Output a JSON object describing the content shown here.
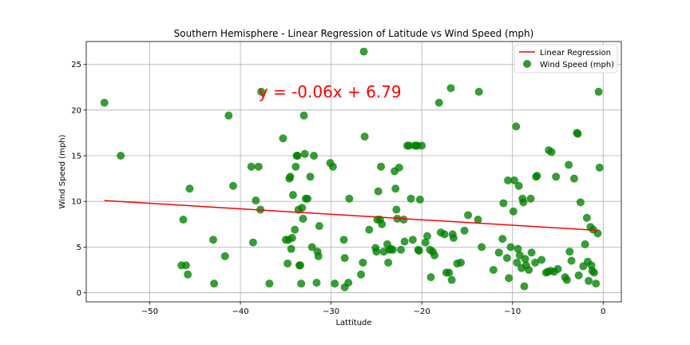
{
  "chart_data": {
    "type": "scatter",
    "title": "Southern Hemisphere - Linear Regression of Latitude vs Wind Speed (mph)",
    "xlabel": "Lattitude",
    "ylabel": "Wind Speed (mph)",
    "xlim": [
      -57,
      2
    ],
    "ylim": [
      -1,
      27.5
    ],
    "xticks": [
      -50,
      -40,
      -30,
      -20,
      -10,
      0
    ],
    "yticks": [
      0,
      5,
      10,
      15,
      20,
      25
    ],
    "grid": true,
    "legend_position": "top-right",
    "annotation": {
      "text": "y = -0.06x + 6.79",
      "x": -38,
      "y": 22,
      "color": "#ff0000"
    },
    "regression": {
      "name": "Linear Regression",
      "slope": -0.06,
      "intercept": 6.79,
      "x_range": [
        -55,
        -0.5
      ],
      "color": "#ff0000"
    },
    "series": [
      {
        "name": "Wind Speed (mph)",
        "color": "#008000",
        "points": [
          [
            -55,
            20.8
          ],
          [
            -53.2,
            15
          ],
          [
            -46.5,
            3
          ],
          [
            -46.3,
            8
          ],
          [
            -46,
            3
          ],
          [
            -45.8,
            2
          ],
          [
            -45.6,
            11.4
          ],
          [
            -43,
            5.8
          ],
          [
            -42.9,
            1
          ],
          [
            -41.7,
            4
          ],
          [
            -41.3,
            19.4
          ],
          [
            -40.8,
            11.7
          ],
          [
            -38.8,
            13.8
          ],
          [
            -38.6,
            5.5
          ],
          [
            -38.3,
            10.1
          ],
          [
            -38,
            13.8
          ],
          [
            -37.8,
            9.1
          ],
          [
            -37.7,
            22
          ],
          [
            -36.8,
            1
          ],
          [
            -35.3,
            16.9
          ],
          [
            -35,
            5.8
          ],
          [
            -34.8,
            3.2
          ],
          [
            -34.7,
            5.8
          ],
          [
            -34.6,
            12.5
          ],
          [
            -34.5,
            12.7
          ],
          [
            -34.4,
            4.8
          ],
          [
            -34.3,
            6
          ],
          [
            -34.2,
            10.7
          ],
          [
            -34,
            6.9
          ],
          [
            -33.9,
            13.8
          ],
          [
            -33.8,
            15
          ],
          [
            -33.7,
            15
          ],
          [
            -33.6,
            9.1
          ],
          [
            -33.5,
            3
          ],
          [
            -33.4,
            3
          ],
          [
            -33.3,
            1
          ],
          [
            -33.2,
            9.3
          ],
          [
            -33.1,
            8.1
          ],
          [
            -33,
            19.4
          ],
          [
            -32.9,
            15.2
          ],
          [
            -32.8,
            10.3
          ],
          [
            -32.6,
            10.3
          ],
          [
            -32.3,
            12.7
          ],
          [
            -32.1,
            5
          ],
          [
            -31.9,
            15
          ],
          [
            -31.6,
            1.1
          ],
          [
            -31.5,
            4.5
          ],
          [
            -31.4,
            4
          ],
          [
            -31.3,
            7.3
          ],
          [
            -30.1,
            14.2
          ],
          [
            -29.8,
            13.8
          ],
          [
            -29.6,
            1
          ],
          [
            -28.6,
            5.8
          ],
          [
            -28.5,
            0.6
          ],
          [
            -28.5,
            3.8
          ],
          [
            -28.1,
            1.1
          ],
          [
            -28,
            10.3
          ],
          [
            -26.7,
            2
          ],
          [
            -26.5,
            3.3
          ],
          [
            -26.4,
            26.4
          ],
          [
            -26.3,
            17.1
          ],
          [
            -25.8,
            6.9
          ],
          [
            -25.1,
            4.9
          ],
          [
            -25,
            4.5
          ],
          [
            -24.9,
            8
          ],
          [
            -24.8,
            11.1
          ],
          [
            -24.6,
            8
          ],
          [
            -24.5,
            13.8
          ],
          [
            -24.4,
            7.5
          ],
          [
            -24.2,
            4.5
          ],
          [
            -23.8,
            5.3
          ],
          [
            -23.7,
            3.3
          ],
          [
            -23.6,
            4.7
          ],
          [
            -23.4,
            4.8
          ],
          [
            -23.2,
            4.7
          ],
          [
            -23,
            13.3
          ],
          [
            -22.9,
            11.4
          ],
          [
            -22.8,
            9.1
          ],
          [
            -22.7,
            8.1
          ],
          [
            -22.5,
            13.7
          ],
          [
            -22.3,
            4.7
          ],
          [
            -22,
            8
          ],
          [
            -21.9,
            5.6
          ],
          [
            -21.6,
            16.1
          ],
          [
            -21.4,
            16.1
          ],
          [
            -21.2,
            10.3
          ],
          [
            -21,
            5.8
          ],
          [
            -20.8,
            16.1
          ],
          [
            -20.6,
            16.1
          ],
          [
            -20.5,
            16.1
          ],
          [
            -20.4,
            4.7
          ],
          [
            -20.3,
            4.6
          ],
          [
            -20.2,
            10.2
          ],
          [
            -20,
            16.1
          ],
          [
            -19.6,
            5.5
          ],
          [
            -19.4,
            6.2
          ],
          [
            -19.1,
            4.7
          ],
          [
            -19,
            1.7
          ],
          [
            -18.8,
            4.5
          ],
          [
            -18.6,
            4.1
          ],
          [
            -18.1,
            20.8
          ],
          [
            -17.9,
            6.6
          ],
          [
            -17.5,
            6.4
          ],
          [
            -17.3,
            2.2
          ],
          [
            -17,
            2.2
          ],
          [
            -16.8,
            22.4
          ],
          [
            -16.7,
            1.4
          ],
          [
            -16.6,
            6.4
          ],
          [
            -16.5,
            6
          ],
          [
            -16.1,
            3.2
          ],
          [
            -15.7,
            3.3
          ],
          [
            -15.3,
            6.8
          ],
          [
            -14.9,
            8.5
          ],
          [
            -13.8,
            8
          ],
          [
            -13.7,
            22
          ],
          [
            -13.4,
            5
          ],
          [
            -12.1,
            2.5
          ],
          [
            -11.5,
            4.4
          ],
          [
            -11.1,
            5.9
          ],
          [
            -11,
            9.8
          ],
          [
            -10.6,
            3.8
          ],
          [
            -10.5,
            12.3
          ],
          [
            -10.4,
            1.6
          ],
          [
            -10.2,
            5
          ],
          [
            -9.9,
            8.9
          ],
          [
            -9.8,
            12.3
          ],
          [
            -9.6,
            18.2
          ],
          [
            -9.5,
            3.3
          ],
          [
            -9.4,
            4.8
          ],
          [
            -9.3,
            11.7
          ],
          [
            -9.2,
            4.1
          ],
          [
            -9,
            2.7
          ],
          [
            -8.9,
            10.3
          ],
          [
            -8.8,
            9.9
          ],
          [
            -8.7,
            0.7
          ],
          [
            -8.6,
            3.7
          ],
          [
            -8.5,
            3
          ],
          [
            -8.2,
            2.5
          ],
          [
            -8,
            10.3
          ],
          [
            -7.9,
            4.4
          ],
          [
            -7.5,
            3.3
          ],
          [
            -7.4,
            12.7
          ],
          [
            -7.3,
            12.8
          ],
          [
            -6.8,
            3.6
          ],
          [
            -6.3,
            2.2
          ],
          [
            -6.1,
            2.3
          ],
          [
            -6,
            15.6
          ],
          [
            -5.8,
            2.4
          ],
          [
            -5.7,
            15.4
          ],
          [
            -5.4,
            2.3
          ],
          [
            -5.2,
            12.7
          ],
          [
            -5,
            2.6
          ],
          [
            -4.2,
            1.7
          ],
          [
            -4,
            1.4
          ],
          [
            -3.8,
            14
          ],
          [
            -3.7,
            4.5
          ],
          [
            -3.5,
            3.5
          ],
          [
            -3.2,
            12.5
          ],
          [
            -2.9,
            17.5
          ],
          [
            -2.8,
            17.4
          ],
          [
            -2.7,
            1.9
          ],
          [
            -2.5,
            9.9
          ],
          [
            -2.2,
            2.9
          ],
          [
            -2,
            5.3
          ],
          [
            -1.8,
            8.2
          ],
          [
            -1.7,
            3.4
          ],
          [
            -1.6,
            1.3
          ],
          [
            -1.4,
            7.2
          ],
          [
            -1.3,
            3
          ],
          [
            -1.2,
            2.4
          ],
          [
            -1.1,
            6.9
          ],
          [
            -1,
            2.2
          ],
          [
            -0.8,
            1
          ],
          [
            -0.6,
            6.5
          ],
          [
            -0.5,
            22
          ],
          [
            -0.4,
            13.7
          ]
        ]
      }
    ]
  }
}
